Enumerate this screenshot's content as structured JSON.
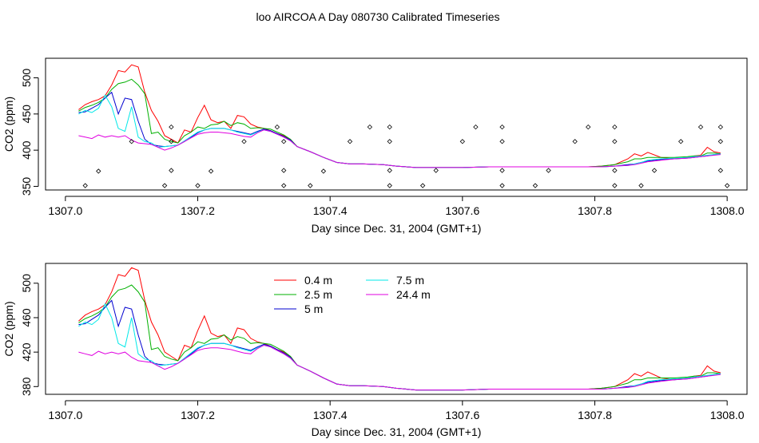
{
  "figure": {
    "title": "loo AIRCOA A  Day 080730  Calibrated Timeseries"
  },
  "chart_data": [
    {
      "type": "line",
      "xlabel": "Day since Dec. 31, 2004 (GMT+1)",
      "ylabel": "CO2 (ppm)",
      "xlim": [
        1306.97,
        1308.03
      ],
      "ylim": [
        345,
        527
      ],
      "x_ticks": [
        "1307.0",
        "1307.2",
        "1307.4",
        "1307.6",
        "1307.8",
        "1308.0"
      ],
      "x_tick_values": [
        1307.0,
        1307.2,
        1307.4,
        1307.6,
        1307.8,
        1308.0
      ],
      "y_ticks": [
        "350",
        "400",
        "450",
        "500"
      ],
      "y_tick_values": [
        350,
        400,
        450,
        500
      ],
      "x": [
        1307.02,
        1307.03,
        1307.04,
        1307.05,
        1307.06,
        1307.07,
        1307.08,
        1307.09,
        1307.1,
        1307.11,
        1307.12,
        1307.13,
        1307.14,
        1307.15,
        1307.16,
        1307.17,
        1307.18,
        1307.19,
        1307.2,
        1307.21,
        1307.22,
        1307.23,
        1307.24,
        1307.25,
        1307.26,
        1307.27,
        1307.28,
        1307.29,
        1307.3,
        1307.31,
        1307.32,
        1307.33,
        1307.34,
        1307.35,
        1307.37,
        1307.39,
        1307.41,
        1307.43,
        1307.45,
        1307.48,
        1307.5,
        1307.53,
        1307.56,
        1307.6,
        1307.64,
        1307.68,
        1307.72,
        1307.76,
        1307.79,
        1307.81,
        1307.83,
        1307.85,
        1307.86,
        1307.87,
        1307.88,
        1307.9,
        1307.92,
        1307.94,
        1307.95,
        1307.96,
        1307.97,
        1307.98,
        1307.99
      ],
      "series": [
        {
          "color": "#ff0000",
          "values": [
            456,
            463,
            467,
            470,
            475,
            490,
            510,
            508,
            518,
            515,
            480,
            455,
            440,
            420,
            415,
            410,
            428,
            425,
            445,
            462,
            442,
            438,
            440,
            430,
            448,
            446,
            436,
            432,
            430,
            427,
            423,
            420,
            415,
            405,
            398,
            390,
            383,
            381,
            381,
            380,
            378,
            376,
            376,
            376,
            377,
            377,
            377,
            377,
            377,
            378,
            380,
            388,
            395,
            392,
            397,
            390,
            388,
            390,
            392,
            393,
            404,
            398,
            396
          ]
        },
        {
          "color": "#00b000",
          "values": [
            454,
            459,
            462,
            466,
            472,
            484,
            492,
            494,
            498,
            490,
            478,
            423,
            425,
            415,
            412,
            410,
            420,
            425,
            432,
            430,
            435,
            436,
            440,
            434,
            438,
            436,
            430,
            431,
            430,
            429,
            425,
            421,
            415,
            405,
            398,
            390,
            383,
            381,
            381,
            380,
            378,
            376,
            376,
            376,
            377,
            377,
            377,
            377,
            377,
            378,
            380,
            384,
            388,
            388,
            390,
            390,
            390,
            391,
            392,
            392,
            396,
            396,
            395
          ]
        },
        {
          "color": "#0000d0",
          "values": [
            452,
            453,
            458,
            463,
            472,
            480,
            450,
            472,
            470,
            440,
            415,
            408,
            406,
            405,
            406,
            407,
            412,
            418,
            424,
            428,
            430,
            430,
            430,
            428,
            426,
            424,
            422,
            426,
            429,
            427,
            423,
            419,
            414,
            405,
            398,
            390,
            383,
            381,
            381,
            380,
            378,
            376,
            376,
            376,
            377,
            377,
            377,
            377,
            377,
            377,
            378,
            380,
            381,
            383,
            385,
            387,
            388,
            389,
            390,
            391,
            392,
            394,
            395
          ]
        },
        {
          "color": "#00e8e8",
          "values": [
            450,
            455,
            452,
            458,
            476,
            460,
            430,
            426,
            460,
            418,
            412,
            410,
            404,
            405,
            406,
            407,
            413,
            419,
            425,
            428,
            430,
            430,
            430,
            428,
            425,
            423,
            421,
            425,
            428,
            426,
            422,
            418,
            413,
            405,
            398,
            390,
            383,
            381,
            381,
            380,
            378,
            376,
            376,
            376,
            377,
            377,
            377,
            377,
            377,
            377,
            378,
            379,
            381,
            383,
            386,
            388,
            389,
            390,
            391,
            392,
            393,
            394,
            395
          ]
        },
        {
          "color": "#e000e0",
          "values": [
            420,
            418,
            416,
            421,
            418,
            420,
            418,
            420,
            414,
            410,
            409,
            408,
            404,
            400,
            403,
            407,
            412,
            417,
            422,
            424,
            425,
            425,
            424,
            423,
            421,
            419,
            418,
            424,
            428,
            426,
            422,
            418,
            413,
            405,
            398,
            390,
            383,
            381,
            381,
            380,
            378,
            376,
            376,
            376,
            377,
            377,
            377,
            377,
            377,
            377,
            378,
            379,
            380,
            382,
            384,
            386,
            388,
            389,
            390,
            391,
            392,
            393,
            394
          ]
        }
      ],
      "markers": [
        {
          "x": 1307.03,
          "y": 351
        },
        {
          "x": 1307.05,
          "y": 371
        },
        {
          "x": 1307.1,
          "y": 412
        },
        {
          "x": 1307.15,
          "y": 351
        },
        {
          "x": 1307.16,
          "y": 372
        },
        {
          "x": 1307.16,
          "y": 412
        },
        {
          "x": 1307.16,
          "y": 432
        },
        {
          "x": 1307.2,
          "y": 351
        },
        {
          "x": 1307.22,
          "y": 371
        },
        {
          "x": 1307.27,
          "y": 412
        },
        {
          "x": 1307.32,
          "y": 432
        },
        {
          "x": 1307.33,
          "y": 412
        },
        {
          "x": 1307.33,
          "y": 372
        },
        {
          "x": 1307.33,
          "y": 351
        },
        {
          "x": 1307.37,
          "y": 351
        },
        {
          "x": 1307.39,
          "y": 371
        },
        {
          "x": 1307.43,
          "y": 412
        },
        {
          "x": 1307.46,
          "y": 432
        },
        {
          "x": 1307.49,
          "y": 351
        },
        {
          "x": 1307.49,
          "y": 372
        },
        {
          "x": 1307.49,
          "y": 412
        },
        {
          "x": 1307.49,
          "y": 432
        },
        {
          "x": 1307.54,
          "y": 351
        },
        {
          "x": 1307.56,
          "y": 372
        },
        {
          "x": 1307.6,
          "y": 412
        },
        {
          "x": 1307.62,
          "y": 432
        },
        {
          "x": 1307.66,
          "y": 432
        },
        {
          "x": 1307.66,
          "y": 412
        },
        {
          "x": 1307.66,
          "y": 372
        },
        {
          "x": 1307.66,
          "y": 351
        },
        {
          "x": 1307.71,
          "y": 351
        },
        {
          "x": 1307.73,
          "y": 372
        },
        {
          "x": 1307.77,
          "y": 412
        },
        {
          "x": 1307.79,
          "y": 432
        },
        {
          "x": 1307.83,
          "y": 432
        },
        {
          "x": 1307.83,
          "y": 412
        },
        {
          "x": 1307.83,
          "y": 372
        },
        {
          "x": 1307.83,
          "y": 351
        },
        {
          "x": 1307.87,
          "y": 351
        },
        {
          "x": 1307.89,
          "y": 372
        },
        {
          "x": 1307.93,
          "y": 412
        },
        {
          "x": 1307.96,
          "y": 432
        },
        {
          "x": 1307.99,
          "y": 432
        },
        {
          "x": 1307.99,
          "y": 412
        },
        {
          "x": 1307.99,
          "y": 372
        },
        {
          "x": 1308.0,
          "y": 351
        }
      ]
    },
    {
      "type": "line",
      "xlabel": "Day since Dec. 31, 2004 (GMT+1)",
      "ylabel": "CO2 (ppm)",
      "xlim": [
        1306.97,
        1308.03
      ],
      "ylim": [
        371,
        523
      ],
      "x_ticks": [
        "1307.0",
        "1307.2",
        "1307.4",
        "1307.6",
        "1307.8",
        "1308.0"
      ],
      "x_tick_values": [
        1307.0,
        1307.2,
        1307.4,
        1307.6,
        1307.8,
        1308.0
      ],
      "y_ticks": [
        "380",
        "420",
        "460",
        "500"
      ],
      "y_tick_values": [
        380,
        420,
        460,
        500
      ],
      "legend": {
        "position": "upper-middle",
        "entries": [
          {
            "label": "0.4 m",
            "color": "#ff0000"
          },
          {
            "label": "2.5 m",
            "color": "#00b000"
          },
          {
            "label": "5 m",
            "color": "#0000d0"
          },
          {
            "label": "7.5 m",
            "color": "#00e8e8"
          },
          {
            "label": "24.4 m",
            "color": "#e000e0"
          }
        ]
      },
      "x": [
        1307.02,
        1307.03,
        1307.04,
        1307.05,
        1307.06,
        1307.07,
        1307.08,
        1307.09,
        1307.1,
        1307.11,
        1307.12,
        1307.13,
        1307.14,
        1307.15,
        1307.16,
        1307.17,
        1307.18,
        1307.19,
        1307.2,
        1307.21,
        1307.22,
        1307.23,
        1307.24,
        1307.25,
        1307.26,
        1307.27,
        1307.28,
        1307.29,
        1307.3,
        1307.31,
        1307.32,
        1307.33,
        1307.34,
        1307.35,
        1307.37,
        1307.39,
        1307.41,
        1307.43,
        1307.45,
        1307.48,
        1307.5,
        1307.53,
        1307.56,
        1307.6,
        1307.64,
        1307.68,
        1307.72,
        1307.76,
        1307.79,
        1307.81,
        1307.83,
        1307.85,
        1307.86,
        1307.87,
        1307.88,
        1307.9,
        1307.92,
        1307.94,
        1307.95,
        1307.96,
        1307.97,
        1307.98,
        1307.99
      ],
      "series": [
        {
          "color": "#ff0000",
          "values": [
            456,
            463,
            467,
            470,
            475,
            490,
            510,
            508,
            518,
            515,
            480,
            455,
            440,
            420,
            415,
            410,
            428,
            425,
            445,
            462,
            442,
            438,
            440,
            430,
            448,
            446,
            436,
            432,
            430,
            427,
            423,
            420,
            415,
            405,
            398,
            390,
            383,
            381,
            381,
            380,
            378,
            376,
            376,
            376,
            377,
            377,
            377,
            377,
            377,
            378,
            380,
            388,
            395,
            392,
            397,
            390,
            388,
            390,
            392,
            393,
            404,
            398,
            396
          ]
        },
        {
          "color": "#00b000",
          "values": [
            454,
            459,
            462,
            466,
            472,
            484,
            492,
            494,
            498,
            490,
            478,
            423,
            425,
            415,
            412,
            410,
            420,
            425,
            432,
            430,
            435,
            436,
            440,
            434,
            438,
            436,
            430,
            431,
            430,
            429,
            425,
            421,
            415,
            405,
            398,
            390,
            383,
            381,
            381,
            380,
            378,
            376,
            376,
            376,
            377,
            377,
            377,
            377,
            377,
            378,
            380,
            384,
            388,
            388,
            390,
            390,
            390,
            391,
            392,
            392,
            396,
            396,
            395
          ]
        },
        {
          "color": "#0000d0",
          "values": [
            452,
            453,
            458,
            463,
            472,
            480,
            450,
            472,
            470,
            440,
            415,
            408,
            406,
            405,
            406,
            407,
            412,
            418,
            424,
            428,
            430,
            430,
            430,
            428,
            426,
            424,
            422,
            426,
            429,
            427,
            423,
            419,
            414,
            405,
            398,
            390,
            383,
            381,
            381,
            380,
            378,
            376,
            376,
            376,
            377,
            377,
            377,
            377,
            377,
            377,
            378,
            380,
            381,
            383,
            385,
            387,
            388,
            389,
            390,
            391,
            392,
            394,
            395
          ]
        },
        {
          "color": "#00e8e8",
          "values": [
            450,
            455,
            452,
            458,
            476,
            460,
            430,
            426,
            460,
            418,
            412,
            410,
            404,
            405,
            406,
            407,
            413,
            419,
            425,
            428,
            430,
            430,
            430,
            428,
            425,
            423,
            421,
            425,
            428,
            426,
            422,
            418,
            413,
            405,
            398,
            390,
            383,
            381,
            381,
            380,
            378,
            376,
            376,
            376,
            377,
            377,
            377,
            377,
            377,
            377,
            378,
            379,
            381,
            383,
            386,
            388,
            389,
            390,
            391,
            392,
            393,
            394,
            395
          ]
        },
        {
          "color": "#e000e0",
          "values": [
            420,
            418,
            416,
            421,
            418,
            420,
            418,
            420,
            414,
            410,
            409,
            408,
            404,
            400,
            403,
            407,
            412,
            417,
            422,
            424,
            425,
            425,
            424,
            423,
            421,
            419,
            418,
            424,
            428,
            426,
            422,
            418,
            413,
            405,
            398,
            390,
            383,
            381,
            381,
            380,
            378,
            376,
            376,
            376,
            377,
            377,
            377,
            377,
            377,
            377,
            378,
            379,
            380,
            382,
            384,
            386,
            388,
            389,
            390,
            391,
            392,
            393,
            394
          ]
        }
      ]
    }
  ]
}
